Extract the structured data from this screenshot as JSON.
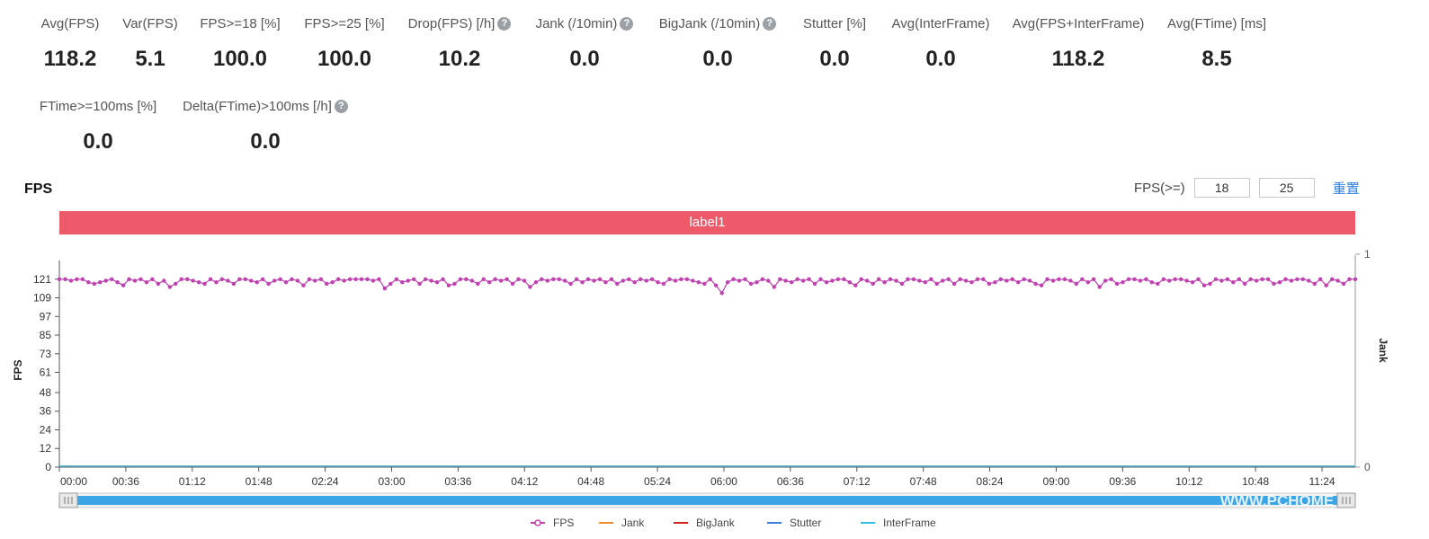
{
  "metrics_row1": [
    {
      "id": "avg-fps",
      "label": "Avg(FPS)",
      "value": "118.2",
      "help": false
    },
    {
      "id": "var-fps",
      "label": "Var(FPS)",
      "value": "5.1",
      "help": false
    },
    {
      "id": "fps-ge-18",
      "label": "FPS>=18 [%]",
      "value": "100.0",
      "help": false
    },
    {
      "id": "fps-ge-25",
      "label": "FPS>=25 [%]",
      "value": "100.0",
      "help": false
    },
    {
      "id": "drop-fps",
      "label": "Drop(FPS) [/h]",
      "value": "10.2",
      "help": true
    },
    {
      "id": "jank",
      "label": "Jank (/10min)",
      "value": "0.0",
      "help": true
    },
    {
      "id": "bigjank",
      "label": "BigJank (/10min)",
      "value": "0.0",
      "help": true
    },
    {
      "id": "stutter",
      "label": "Stutter [%]",
      "value": "0.0",
      "help": false
    },
    {
      "id": "avg-interframe",
      "label": "Avg(InterFrame)",
      "value": "0.0",
      "help": false
    },
    {
      "id": "avg-fps-interframe",
      "label": "Avg(FPS+InterFrame)",
      "value": "118.2",
      "help": false
    },
    {
      "id": "avg-ftime",
      "label": "Avg(FTime) [ms]",
      "value": "8.5",
      "help": false
    }
  ],
  "metrics_row2": [
    {
      "id": "ftime-ge-100",
      "label": "FTime>=100ms [%]",
      "value": "0.0",
      "help": false
    },
    {
      "id": "delta-ftime",
      "label": "Delta(FTime)>100ms [/h]",
      "value": "0.0",
      "help": true
    }
  ],
  "help_glyph": "?",
  "section_title": "FPS",
  "threshold": {
    "label": "FPS(>=)",
    "value1": "18",
    "value2": "25",
    "reset_label": "重置"
  },
  "label_bar": "label1",
  "watermark": "WWW.PCHOME",
  "colors": {
    "fps": "#c040b0",
    "jank": "#f08a30",
    "bigjank": "#d62020",
    "stutter": "#3a7fe0",
    "interframe": "#30c0e0",
    "label_bar": "#ee5a6a",
    "slider": "#39a5e6"
  },
  "chart_data": {
    "type": "line",
    "ylabel": "FPS",
    "y2label": "Jank",
    "yticks": [
      "0",
      "12",
      "24",
      "36",
      "48",
      "61",
      "73",
      "85",
      "97",
      "109",
      "121"
    ],
    "ylim": [
      0,
      133
    ],
    "y2ticks": [
      "0",
      "1"
    ],
    "x_ticks": [
      "00:00",
      "00:36",
      "01:12",
      "01:48",
      "02:24",
      "03:00",
      "03:36",
      "04:12",
      "04:48",
      "05:24",
      "06:00",
      "06:36",
      "07:12",
      "07:48",
      "08:24",
      "09:00",
      "09:36",
      "10:12",
      "10:48",
      "11:24"
    ],
    "x_range_seconds": [
      0,
      702
    ],
    "series": [
      {
        "name": "FPS",
        "key": "fps",
        "values": [
          121,
          121,
          120,
          121,
          121,
          119,
          118,
          119,
          120,
          121,
          119,
          117,
          121,
          120,
          121,
          119,
          121,
          118,
          120,
          116,
          118,
          121,
          121,
          120,
          119,
          118,
          121,
          119,
          121,
          120,
          118,
          121,
          121,
          120,
          119,
          121,
          118,
          120,
          121,
          119,
          121,
          120,
          117,
          121,
          120,
          121,
          118,
          119,
          121,
          120,
          121,
          121,
          121,
          121,
          120,
          121,
          115,
          118,
          121,
          119,
          120,
          121,
          118,
          121,
          120,
          119,
          121,
          117,
          118,
          121,
          121,
          120,
          118,
          121,
          119,
          121,
          120,
          121,
          118,
          121,
          120,
          116,
          119,
          121,
          120,
          121,
          121,
          120,
          118,
          121,
          119,
          121,
          120,
          121,
          119,
          121,
          118,
          120,
          121,
          119,
          121,
          120,
          121,
          119,
          118,
          121,
          120,
          121,
          121,
          120,
          119,
          118,
          121,
          117,
          112,
          119,
          121,
          120,
          121,
          118,
          119,
          121,
          120,
          116,
          121,
          120,
          119,
          121,
          120,
          121,
          118,
          121,
          119,
          120,
          121,
          121,
          119,
          117,
          121,
          120,
          118,
          121,
          119,
          121,
          120,
          118,
          121,
          121,
          120,
          119,
          121,
          118,
          120,
          121,
          118,
          121,
          120,
          119,
          121,
          121,
          118,
          119,
          121,
          120,
          121,
          119,
          121,
          120,
          118,
          117,
          121,
          120,
          121,
          121,
          120,
          118,
          121,
          119,
          121,
          116,
          120,
          121,
          118,
          119,
          121,
          121,
          120,
          121,
          119,
          118,
          121,
          120,
          121,
          121,
          120,
          119,
          121,
          117,
          118,
          121,
          120,
          121,
          119,
          121,
          118,
          121,
          120,
          121,
          121,
          118,
          119,
          121,
          120,
          121,
          121,
          120,
          118,
          121,
          117,
          121,
          120,
          118,
          121,
          121
        ]
      },
      {
        "name": "Jank",
        "key": "jank",
        "values": [
          0,
          0,
          0,
          0,
          0,
          0,
          0,
          0,
          0,
          0,
          0,
          0,
          0,
          0,
          0,
          0,
          0,
          0,
          0,
          0
        ]
      },
      {
        "name": "BigJank",
        "key": "bigjank",
        "values": [
          0,
          0,
          0,
          0,
          0,
          0,
          0,
          0,
          0,
          0,
          0,
          0,
          0,
          0,
          0,
          0,
          0,
          0,
          0,
          0
        ]
      },
      {
        "name": "Stutter",
        "key": "stutter",
        "values": [
          0,
          0,
          0,
          0,
          0,
          0,
          0,
          0,
          0,
          0,
          0,
          0,
          0,
          0,
          0,
          0,
          0,
          0,
          0,
          0
        ]
      },
      {
        "name": "InterFrame",
        "key": "interframe",
        "values": [
          0,
          0,
          0,
          0,
          0,
          0,
          0,
          0,
          0,
          0,
          0,
          0,
          0,
          0,
          0,
          0,
          0,
          0,
          0,
          0
        ]
      }
    ],
    "legend_position": "bottom-center",
    "grid": false
  }
}
